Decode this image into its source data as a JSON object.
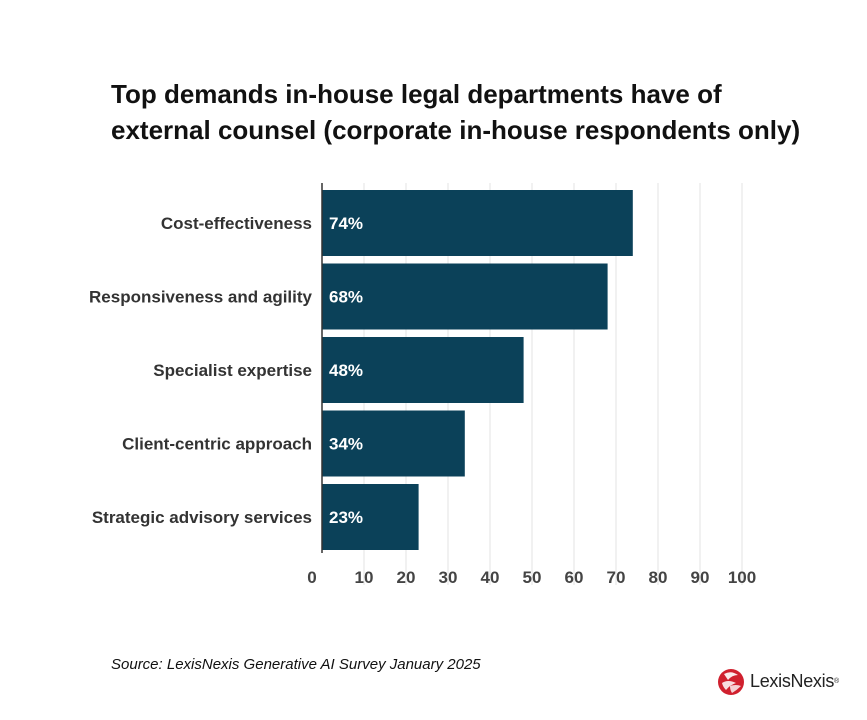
{
  "chart_data": {
    "type": "bar",
    "orientation": "horizontal",
    "title": "Top demands in-house legal departments have of external counsel (corporate in-house respondents only)",
    "categories": [
      "Cost-effectiveness",
      "Responsiveness and agility",
      "Specialist expertise",
      "Client-centric approach",
      "Strategic advisory services"
    ],
    "values": [
      74,
      68,
      48,
      34,
      23
    ],
    "data_labels": [
      "74%",
      "68%",
      "48%",
      "34%",
      "23%"
    ],
    "xlim": [
      0,
      100
    ],
    "xticks": [
      0,
      10,
      20,
      30,
      40,
      50,
      60,
      70,
      80,
      90,
      100
    ],
    "grid": "vertical",
    "xlabel": "",
    "ylabel": ""
  },
  "colors": {
    "bar": "#0b4159",
    "bar_label": "#ffffff",
    "gridline": "#e3e3e3",
    "axis": "#333333",
    "tick_label": "#444444",
    "category_label": "#333333",
    "logo_red": "#d0202e"
  },
  "source": "Source: LexisNexis Generative AI Survey January 2025",
  "logo": {
    "text": "LexisNexis",
    "registered": "®",
    "icon": "lexisnexis-logo-icon"
  }
}
